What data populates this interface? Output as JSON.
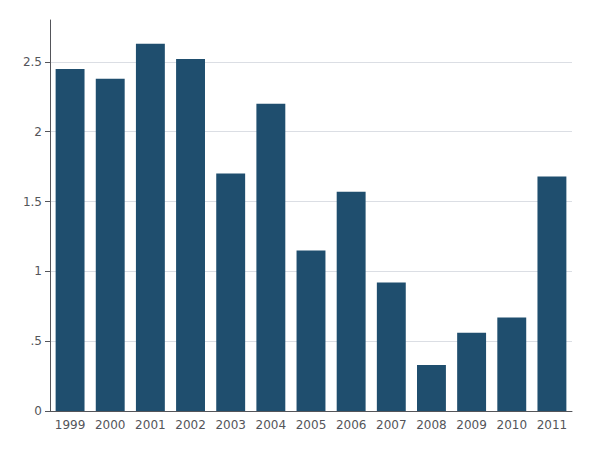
{
  "chart_data": {
    "type": "bar",
    "categories": [
      "1999",
      "2000",
      "2001",
      "2002",
      "2003",
      "2004",
      "2005",
      "2006",
      "2007",
      "2008",
      "2009",
      "2010",
      "2011"
    ],
    "values": [
      2.45,
      2.38,
      2.63,
      2.52,
      1.7,
      2.2,
      1.15,
      1.57,
      0.92,
      0.33,
      0.56,
      0.67,
      1.68
    ],
    "color": "#1f4e6e",
    "ylim": [
      0,
      2.8
    ],
    "yticks": [
      0,
      {
        "value": 0.5,
        "label": ".5"
      },
      1,
      1.5,
      2,
      2.5
    ],
    "grid": true
  }
}
